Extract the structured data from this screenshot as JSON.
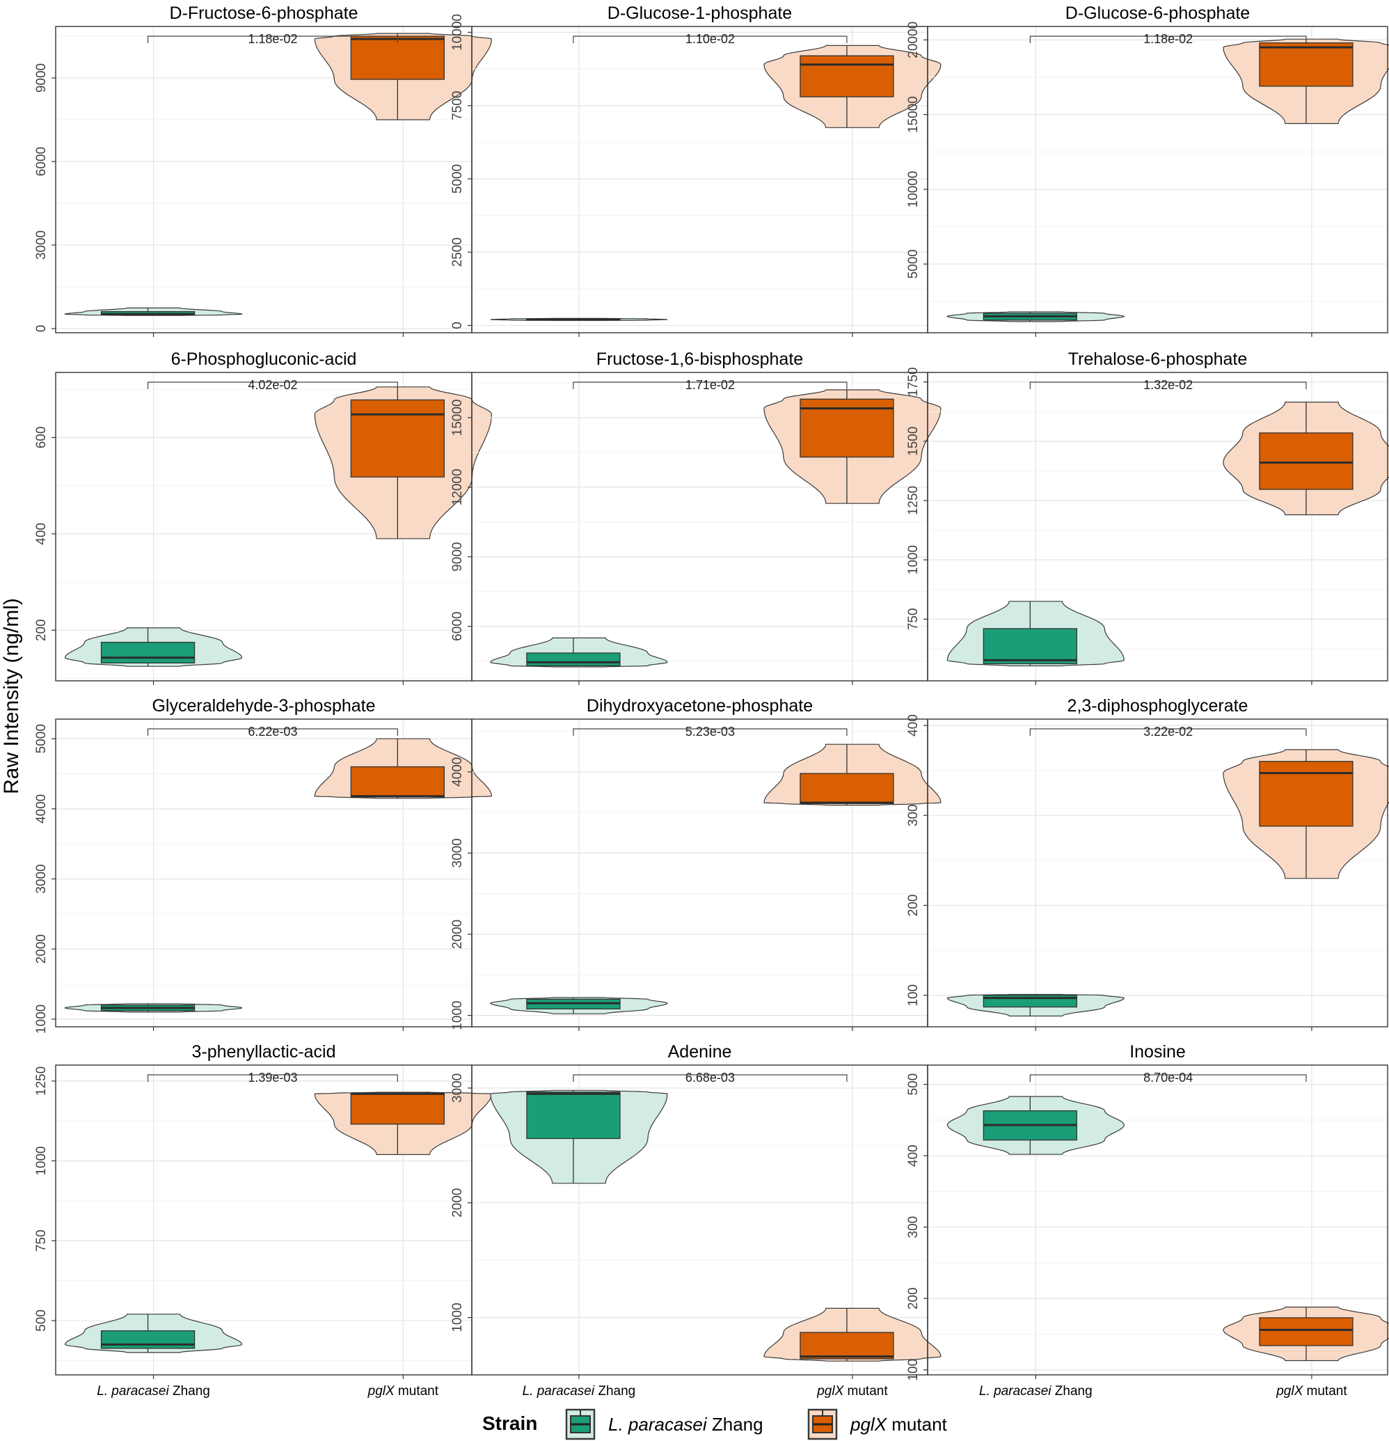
{
  "figure": {
    "ylabel": "Raw Intensity (ng/ml)",
    "x_categories": [
      {
        "italic": "L. paracasei",
        "rest": " Zhang"
      },
      {
        "italic": "pglX",
        "rest": " mutant"
      }
    ],
    "legend": {
      "title": "Strain",
      "items": [
        {
          "italic": "L. paracasei",
          "rest": " Zhang",
          "fill": "#1b9e77",
          "light": "#d2ece4"
        },
        {
          "italic": "pglX",
          "rest": " mutant",
          "fill": "#d95f02",
          "light": "#f9dac6"
        }
      ]
    }
  },
  "chart_data": [
    {
      "type": "box+violin",
      "title": "D-Fructose-6-phosphate",
      "pvalue": "1.18e-02",
      "ylim": [
        -150,
        10850
      ],
      "yticks": [
        "0",
        "3000",
        "6000",
        "9000"
      ],
      "groups": [
        {
          "min": 470,
          "q1": 490,
          "median": 520,
          "q3": 610,
          "max": 740
        },
        {
          "min": 7500,
          "q1": 8950,
          "median": 10400,
          "q3": 10500,
          "max": 10600
        }
      ]
    },
    {
      "type": "box+violin",
      "title": "D-Glucose-1-phosphate",
      "pvalue": "1.10e-02",
      "ylim": [
        -250,
        10200
      ],
      "yticks": [
        "0",
        "2500",
        "5000",
        "7500",
        "10000"
      ],
      "groups": [
        {
          "min": 170,
          "q1": 180,
          "median": 200,
          "q3": 225,
          "max": 240
        },
        {
          "min": 6750,
          "q1": 7800,
          "median": 8900,
          "q3": 9200,
          "max": 9550
        }
      ]
    },
    {
      "type": "box+violin",
      "title": "D-Glucose-6-phosphate",
      "pvalue": "1.18e-02",
      "ylim": [
        400,
        20900
      ],
      "yticks": [
        "5000",
        "10000",
        "15000",
        "20000"
      ],
      "groups": [
        {
          "min": 1150,
          "q1": 1250,
          "median": 1500,
          "q3": 1700,
          "max": 1800
        },
        {
          "min": 14400,
          "q1": 16900,
          "median": 19500,
          "q3": 19800,
          "max": 20050
        }
      ]
    },
    {
      "type": "box+violin",
      "title": "6-Phosphogluconic-acid",
      "pvalue": "4.02e-02",
      "ylim": [
        95,
        735
      ],
      "yticks": [
        "200",
        "400",
        "600"
      ],
      "groups": [
        {
          "min": 125,
          "q1": 132,
          "median": 143,
          "q3": 175,
          "max": 205
        },
        {
          "min": 390,
          "q1": 518,
          "median": 648,
          "q3": 678,
          "max": 705
        }
      ]
    },
    {
      "type": "box+violin",
      "title": "Fructose-1,6-bisphosphate",
      "pvalue": "1.71e-02",
      "ylim": [
        3650,
        16950
      ],
      "yticks": [
        "6000",
        "9000",
        "12000",
        "15000"
      ],
      "groups": [
        {
          "min": 4250,
          "q1": 4300,
          "median": 4450,
          "q3": 4850,
          "max": 5500
        },
        {
          "min": 11300,
          "q1": 13300,
          "median": 15400,
          "q3": 15800,
          "max": 16200
        }
      ]
    },
    {
      "type": "box+violin",
      "title": "Trehalose-6-phosphate",
      "pvalue": "1.32e-02",
      "ylim": [
        490,
        1790
      ],
      "yticks": [
        "750",
        "1000",
        "1250",
        "1500",
        "1750"
      ],
      "groups": [
        {
          "min": 553,
          "q1": 562,
          "median": 577,
          "q3": 710,
          "max": 825
        },
        {
          "min": 1190,
          "q1": 1297,
          "median": 1410,
          "q3": 1535,
          "max": 1665
        }
      ]
    },
    {
      "type": "box+violin",
      "title": "Glyceraldehyde-3-phosphate",
      "pvalue": "6.22e-03",
      "ylim": [
        890,
        5280
      ],
      "yticks": [
        "1000",
        "2000",
        "3000",
        "4000",
        "5000"
      ],
      "groups": [
        {
          "min": 1100,
          "q1": 1120,
          "median": 1160,
          "q3": 1200,
          "max": 1220
        },
        {
          "min": 4150,
          "q1": 4170,
          "median": 4180,
          "q3": 4600,
          "max": 5000
        }
      ]
    },
    {
      "type": "box+violin",
      "title": "Dihydroxyacetone-phosphate",
      "pvalue": "5.23e-03",
      "ylim": [
        860,
        4650
      ],
      "yticks": [
        "1000",
        "2000",
        "3000",
        "4000"
      ],
      "groups": [
        {
          "min": 1020,
          "q1": 1080,
          "median": 1150,
          "q3": 1200,
          "max": 1220
        },
        {
          "min": 3590,
          "q1": 3610,
          "median": 3620,
          "q3": 3980,
          "max": 4340
        }
      ]
    },
    {
      "type": "box+violin",
      "title": "2,3-diphosphoglycerate",
      "pvalue": "3.22e-02",
      "ylim": [
        65,
        407
      ],
      "yticks": [
        "100",
        "200",
        "300",
        "400"
      ],
      "groups": [
        {
          "min": 77,
          "q1": 87,
          "median": 97,
          "q3": 100,
          "max": 101
        },
        {
          "min": 230,
          "q1": 288,
          "median": 347,
          "q3": 360,
          "max": 373
        }
      ]
    },
    {
      "type": "box+violin",
      "title": "3-phenyllactic-acid",
      "pvalue": "1.39e-03",
      "ylim": [
        330,
        1300
      ],
      "yticks": [
        "500",
        "750",
        "1000",
        "1250"
      ],
      "groups": [
        {
          "min": 400,
          "q1": 413,
          "median": 425,
          "q3": 468,
          "max": 520
        },
        {
          "min": 1020,
          "q1": 1115,
          "median": 1210,
          "q3": 1212,
          "max": 1215
        }
      ]
    },
    {
      "type": "box+violin",
      "title": "Adenine",
      "pvalue": "6.68e-03",
      "ylim": [
        500,
        3200
      ],
      "yticks": [
        "1000",
        "2000",
        "3000"
      ],
      "groups": [
        {
          "min": 2170,
          "q1": 2560,
          "median": 2950,
          "q3": 2965,
          "max": 2980
        },
        {
          "min": 620,
          "q1": 640,
          "median": 660,
          "q3": 870,
          "max": 1080
        }
      ]
    },
    {
      "type": "box+violin",
      "title": "Inosine",
      "pvalue": "8.70e-04",
      "ylim": [
        93,
        527
      ],
      "yticks": [
        "100",
        "200",
        "300",
        "400",
        "500"
      ],
      "groups": [
        {
          "min": 402,
          "q1": 422,
          "median": 443,
          "q3": 463,
          "max": 483
        },
        {
          "min": 113,
          "q1": 134,
          "median": 156,
          "q3": 173,
          "max": 188
        }
      ]
    }
  ]
}
